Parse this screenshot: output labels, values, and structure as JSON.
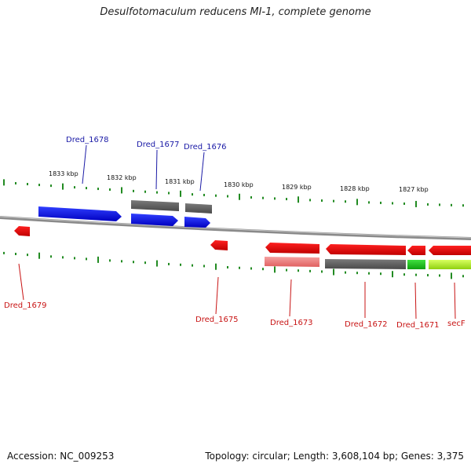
{
  "title": "Desulfotomaculum reducens MI-1, complete genome",
  "footer": {
    "accession": "Accession: NC_009253",
    "summary": "Topology: circular; Length: 3,608,104 bp; Genes: 3,375"
  },
  "colors": {
    "forward_gene": "#0a14e6",
    "reverse_gene": "#e60a0a",
    "pseudo_gene": "#6a6a6a",
    "forward_tick": "#228b22",
    "reverse_tick": "#228b22",
    "backbone": "#8a8a8a",
    "label_forward": "#1a1aa6",
    "label_reverse": "#c81414"
  },
  "kbp_labels": [
    "1833 kbp",
    "1832 kbp",
    "1831 kbp",
    "1830 kbp",
    "1829 kbp",
    "1828 kbp",
    "1827 kbp"
  ],
  "gene_labels": {
    "forward": [
      "Dred_1678",
      "Dred_1677",
      "Dred_1676"
    ],
    "reverse": [
      "Dred_1679",
      "Dred_1675",
      "Dred_1673",
      "Dred_1672",
      "Dred_1671",
      "secF"
    ]
  }
}
